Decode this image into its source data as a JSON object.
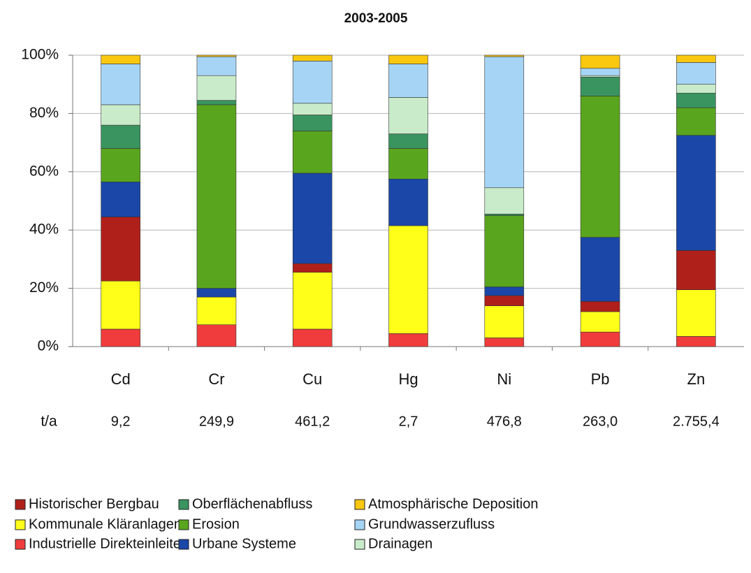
{
  "chart_data": {
    "type": "stacked-bar-percent",
    "title": "2003-2005",
    "categories": [
      "Cd",
      "Cr",
      "Cu",
      "Hg",
      "Ni",
      "Pb",
      "Zn"
    ],
    "totals_label": "t/a",
    "totals": [
      "9,2",
      "249,9",
      "461,2",
      "2,7",
      "476,8",
      "263,0",
      "2.755,4"
    ],
    "ylim": [
      0,
      100
    ],
    "yticks": [
      {
        "value": 0,
        "label": "0%"
      },
      {
        "value": 20,
        "label": "20%"
      },
      {
        "value": 40,
        "label": "40%"
      },
      {
        "value": 60,
        "label": "60%"
      },
      {
        "value": 80,
        "label": "80%"
      },
      {
        "value": 100,
        "label": "100%"
      }
    ],
    "grid": true,
    "series": [
      {
        "name": "Industrielle Direkteinleiter",
        "color": "#f03c3c",
        "values": [
          6,
          7.5,
          6,
          4.5,
          3,
          5,
          3.5
        ]
      },
      {
        "name": "Kommunale Kläranlagen",
        "color": "#ffff1a",
        "values": [
          16.5,
          9.5,
          19.5,
          37,
          11,
          7,
          16
        ]
      },
      {
        "name": "Historischer Bergbau",
        "color": "#b0201b",
        "values": [
          22,
          0,
          3,
          0,
          3.5,
          3.5,
          13.5
        ]
      },
      {
        "name": "Urbane Systeme",
        "color": "#1a47a8",
        "values": [
          12,
          3,
          31,
          16,
          3,
          22,
          39.5
        ]
      },
      {
        "name": "Erosion",
        "color": "#5aa51e",
        "values": [
          11.5,
          63,
          14.5,
          10.5,
          24.5,
          48.5,
          9.5
        ]
      },
      {
        "name": "Oberflächenabfluss",
        "color": "#3a9460",
        "values": [
          8,
          1.5,
          5.5,
          5,
          0.5,
          6.5,
          5
        ]
      },
      {
        "name": "Drainagen",
        "color": "#c9ebc9",
        "values": [
          7,
          8.5,
          4,
          12.5,
          9,
          0.5,
          3
        ]
      },
      {
        "name": "Grundwasserzufluss",
        "color": "#a6d4f5",
        "values": [
          14,
          6.5,
          14.5,
          11.5,
          45,
          2.5,
          7.5
        ]
      },
      {
        "name": "Atmosphärische Deposition",
        "color": "#f9c80f",
        "values": [
          3,
          0.5,
          2,
          3,
          0.5,
          4.5,
          2.5
        ]
      }
    ]
  }
}
